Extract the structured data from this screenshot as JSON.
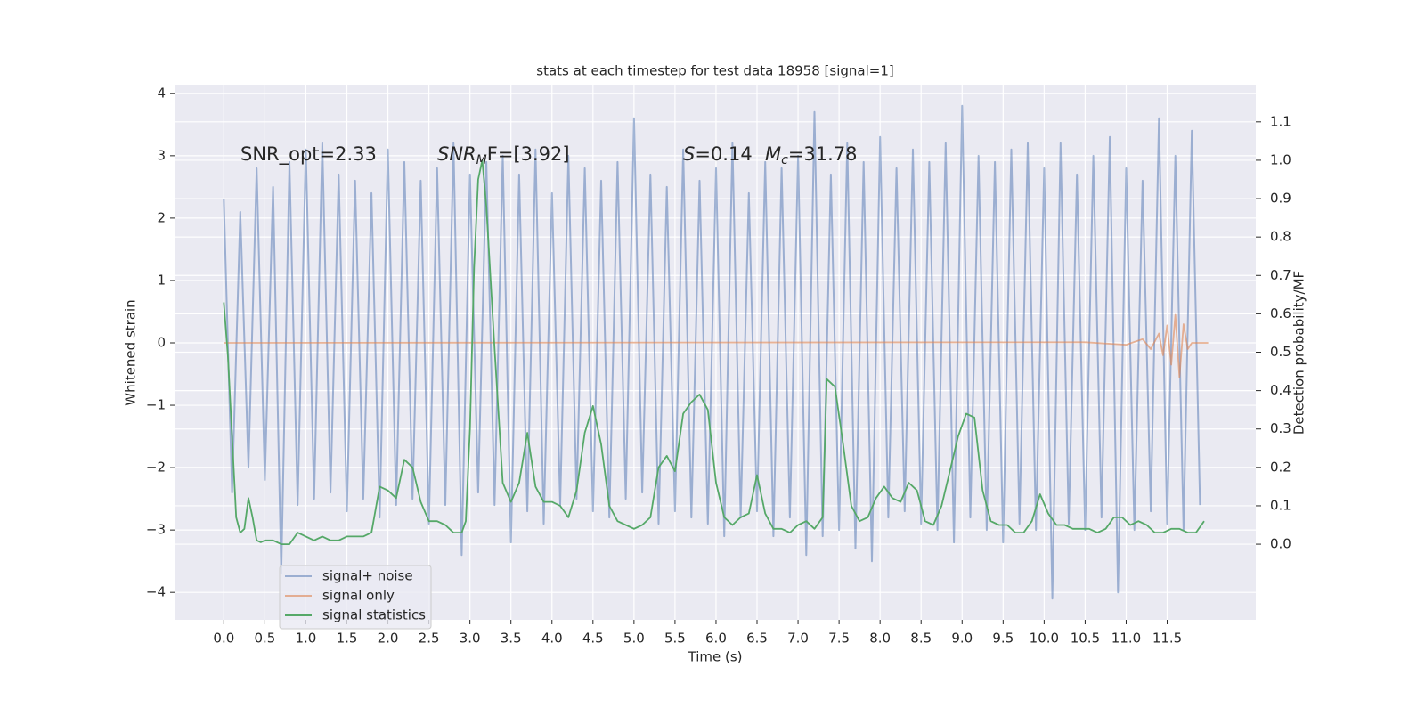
{
  "chart_data": {
    "type": "line",
    "title": "stats at each timestep for test data 18958 [signal=1]",
    "xlabel": "Time (s)",
    "ylabel": "Whitened strain",
    "y2label": "Detection probability/MF",
    "annotations": [
      {
        "parts": [
          "SNR_opt=2.33"
        ]
      },
      {
        "parts": [
          "SNR",
          "M",
          "F=[3.92]"
        ]
      },
      {
        "parts": [
          "S",
          "=0.14"
        ]
      },
      {
        "parts": [
          "M",
          "c",
          "=31.78"
        ]
      }
    ],
    "xlim": [
      -0.59,
      12.58
    ],
    "ylim": [
      -4.44,
      4.14
    ],
    "y2lim": [
      -0.197,
      1.197
    ],
    "xticks": [
      {
        "value": 0,
        "label": "0.0"
      },
      {
        "value": 0.5,
        "label": "0.5"
      },
      {
        "value": 1,
        "label": "1.0"
      },
      {
        "value": 1.5,
        "label": "1.5"
      },
      {
        "value": 2,
        "label": "2.0"
      },
      {
        "value": 2.5,
        "label": "2.5"
      },
      {
        "value": 3,
        "label": "3.0"
      },
      {
        "value": 3.5,
        "label": "3.5"
      },
      {
        "value": 4,
        "label": "4.0"
      },
      {
        "value": 4.5,
        "label": "4.5"
      },
      {
        "value": 5,
        "label": "5.0"
      },
      {
        "value": 5.5,
        "label": "5.5"
      },
      {
        "value": 6,
        "label": "6.0"
      },
      {
        "value": 6.5,
        "label": "6.5"
      },
      {
        "value": 7,
        "label": "7.0"
      },
      {
        "value": 7.5,
        "label": "7.5"
      },
      {
        "value": 8,
        "label": "8.0"
      },
      {
        "value": 8.5,
        "label": "8.5"
      },
      {
        "value": 9,
        "label": "9.0"
      },
      {
        "value": 9.5,
        "label": "9.5"
      },
      {
        "value": 10,
        "label": "10.0"
      },
      {
        "value": 10.5,
        "label": "10.5"
      },
      {
        "value": 11,
        "label": "11.0"
      },
      {
        "value": 11.5,
        "label": "11.5"
      }
    ],
    "yticks": [
      {
        "value": -4,
        "label": "−4"
      },
      {
        "value": -3,
        "label": "−3"
      },
      {
        "value": -2,
        "label": "−2"
      },
      {
        "value": -1,
        "label": "−1"
      },
      0,
      1,
      2,
      3,
      4
    ],
    "y2ticks": [
      {
        "value": 0,
        "label": "0.0"
      },
      {
        "value": 0.1,
        "label": "0.1"
      },
      {
        "value": 0.2,
        "label": "0.2"
      },
      {
        "value": 0.3,
        "label": "0.3"
      },
      {
        "value": 0.4,
        "label": "0.4"
      },
      {
        "value": 0.5,
        "label": "0.5"
      },
      {
        "value": 0.6,
        "label": "0.6"
      },
      {
        "value": 0.7,
        "label": "0.7"
      },
      {
        "value": 0.8,
        "label": "0.8"
      },
      {
        "value": 0.9,
        "label": "0.9"
      },
      {
        "value": 1,
        "label": "1.0"
      },
      {
        "value": 1.1,
        "label": "1.1"
      }
    ],
    "grid": true,
    "legend": "lower left",
    "series": [
      {
        "name": "signal+ noise",
        "color": "#4c72b0",
        "opacity": 0.5,
        "axis": "y",
        "x": [
          0,
          0.1,
          0.2,
          0.3,
          0.4,
          0.5,
          0.6,
          0.7,
          0.8,
          0.9,
          1,
          1.1,
          1.2,
          1.3,
          1.4,
          1.5,
          1.6,
          1.7,
          1.8,
          1.9,
          2,
          2.1,
          2.2,
          2.3,
          2.4,
          2.5,
          2.6,
          2.7,
          2.8,
          2.9,
          3,
          3.1,
          3.2,
          3.3,
          3.4,
          3.5,
          3.6,
          3.7,
          3.8,
          3.9,
          4,
          4.1,
          4.2,
          4.3,
          4.4,
          4.5,
          4.6,
          4.7,
          4.8,
          4.9,
          5,
          5.1,
          5.2,
          5.3,
          5.4,
          5.5,
          5.6,
          5.7,
          5.8,
          5.9,
          6,
          6.1,
          6.2,
          6.3,
          6.4,
          6.5,
          6.6,
          6.7,
          6.8,
          6.9,
          7,
          7.1,
          7.2,
          7.3,
          7.4,
          7.5,
          7.6,
          7.7,
          7.8,
          7.9,
          8,
          8.1,
          8.2,
          8.3,
          8.4,
          8.5,
          8.6,
          8.7,
          8.8,
          8.9,
          9,
          9.1,
          9.2,
          9.3,
          9.4,
          9.5,
          9.6,
          9.7,
          9.8,
          9.9,
          10,
          10.1,
          10.2,
          10.3,
          10.4,
          10.5,
          10.6,
          10.7,
          10.8,
          10.9,
          11,
          11.1,
          11.2,
          11.3,
          11.4,
          11.5,
          11.6,
          11.7,
          11.8,
          11.9
        ],
        "values": [
          2.3,
          -2.4,
          2.1,
          -2.0,
          2.8,
          -2.2,
          2.5,
          -3.7,
          2.9,
          -2.6,
          3.1,
          -2.5,
          3.2,
          -2.4,
          2.7,
          -2.7,
          2.6,
          -2.5,
          2.4,
          -2.8,
          3.1,
          -2.6,
          2.9,
          -2.5,
          2.6,
          -2.9,
          2.8,
          -2.6,
          3.2,
          -3.4,
          2.7,
          -2.4,
          2.9,
          -2.6,
          3.0,
          -3.2,
          2.7,
          -2.7,
          3.1,
          -2.9,
          2.4,
          -2.6,
          3.0,
          -2.5,
          2.8,
          -2.7,
          2.6,
          -2.8,
          2.9,
          -2.5,
          3.6,
          -2.4,
          2.7,
          -2.9,
          2.5,
          -2.7,
          3.1,
          -2.8,
          2.6,
          -2.9,
          2.8,
          -3.1,
          3.2,
          -2.8,
          2.4,
          -2.7,
          2.9,
          -3.1,
          2.8,
          -2.8,
          3.0,
          -3.4,
          3.7,
          -3.1,
          2.7,
          -3.0,
          3.2,
          -3.3,
          2.9,
          -3.5,
          3.3,
          -2.8,
          2.8,
          -2.7,
          3.1,
          -2.9,
          2.9,
          -3.0,
          3.2,
          -3.2,
          3.8,
          -2.8,
          3.0,
          -3.0,
          2.9,
          -3.2,
          3.1,
          -2.9,
          3.2,
          -3.0,
          2.8,
          -4.1,
          3.2,
          -2.9,
          2.7,
          -3.0,
          3.0,
          -2.8,
          3.3,
          -4.0,
          2.8,
          -3.0,
          2.6,
          -2.7,
          3.6,
          -2.9,
          3.0,
          -3.0,
          3.4,
          -2.6
        ]
      },
      {
        "name": "signal only",
        "color": "#dd8452",
        "opacity": 0.6,
        "axis": "y",
        "x": [
          0,
          10.5,
          11.0,
          11.2,
          11.3,
          11.4,
          11.45,
          11.5,
          11.55,
          11.6,
          11.65,
          11.7,
          11.75,
          11.8,
          12.0
        ],
        "values": [
          0,
          0.01,
          -0.03,
          0.06,
          -0.1,
          0.15,
          -0.2,
          0.28,
          -0.35,
          0.45,
          -0.55,
          0.3,
          -0.1,
          0,
          0
        ]
      },
      {
        "name": "signal statistics",
        "color": "#55a868",
        "opacity": 1,
        "axis": "y2",
        "x": [
          0,
          0.05,
          0.1,
          0.15,
          0.2,
          0.25,
          0.3,
          0.35,
          0.4,
          0.45,
          0.5,
          0.6,
          0.7,
          0.8,
          0.9,
          1,
          1.1,
          1.2,
          1.3,
          1.4,
          1.5,
          1.6,
          1.7,
          1.8,
          1.9,
          2,
          2.1,
          2.2,
          2.3,
          2.4,
          2.5,
          2.6,
          2.7,
          2.8,
          2.9,
          2.95,
          3,
          3.05,
          3.1,
          3.15,
          3.2,
          3.3,
          3.4,
          3.5,
          3.6,
          3.7,
          3.8,
          3.9,
          4,
          4.1,
          4.2,
          4.3,
          4.4,
          4.5,
          4.6,
          4.7,
          4.8,
          4.9,
          5,
          5.1,
          5.2,
          5.3,
          5.4,
          5.5,
          5.6,
          5.7,
          5.8,
          5.9,
          6,
          6.1,
          6.2,
          6.3,
          6.4,
          6.5,
          6.6,
          6.7,
          6.8,
          6.9,
          7,
          7.1,
          7.2,
          7.3,
          7.35,
          7.45,
          7.55,
          7.65,
          7.75,
          7.85,
          7.95,
          8.05,
          8.15,
          8.25,
          8.35,
          8.45,
          8.55,
          8.65,
          8.75,
          8.85,
          8.95,
          9.05,
          9.15,
          9.25,
          9.35,
          9.45,
          9.55,
          9.65,
          9.75,
          9.85,
          9.95,
          10.05,
          10.15,
          10.25,
          10.35,
          10.45,
          10.55,
          10.65,
          10.75,
          10.85,
          10.95,
          11.05,
          11.15,
          11.25,
          11.35,
          11.45,
          11.55,
          11.65,
          11.75,
          11.85,
          11.95
        ],
        "values": [
          0.63,
          0.49,
          0.28,
          0.07,
          0.03,
          0.04,
          0.12,
          0.07,
          0.01,
          0.005,
          0.01,
          0.01,
          0,
          0,
          0.03,
          0.02,
          0.01,
          0.02,
          0.01,
          0.01,
          0.02,
          0.02,
          0.02,
          0.03,
          0.15,
          0.14,
          0.12,
          0.22,
          0.2,
          0.11,
          0.06,
          0.06,
          0.05,
          0.03,
          0.03,
          0.06,
          0.3,
          0.72,
          0.95,
          1.0,
          0.88,
          0.51,
          0.16,
          0.11,
          0.16,
          0.29,
          0.15,
          0.11,
          0.11,
          0.1,
          0.07,
          0.14,
          0.29,
          0.36,
          0.26,
          0.1,
          0.06,
          0.05,
          0.04,
          0.05,
          0.07,
          0.2,
          0.23,
          0.19,
          0.34,
          0.37,
          0.39,
          0.35,
          0.16,
          0.07,
          0.05,
          0.07,
          0.08,
          0.18,
          0.08,
          0.04,
          0.04,
          0.03,
          0.05,
          0.06,
          0.04,
          0.07,
          0.43,
          0.41,
          0.26,
          0.1,
          0.06,
          0.07,
          0.12,
          0.15,
          0.12,
          0.11,
          0.16,
          0.14,
          0.06,
          0.05,
          0.1,
          0.19,
          0.28,
          0.34,
          0.33,
          0.14,
          0.06,
          0.05,
          0.05,
          0.03,
          0.03,
          0.06,
          0.13,
          0.08,
          0.05,
          0.05,
          0.04,
          0.04,
          0.04,
          0.03,
          0.04,
          0.07,
          0.07,
          0.05,
          0.06,
          0.05,
          0.03,
          0.03,
          0.04,
          0.04,
          0.03,
          0.03,
          0.06
        ]
      }
    ]
  }
}
